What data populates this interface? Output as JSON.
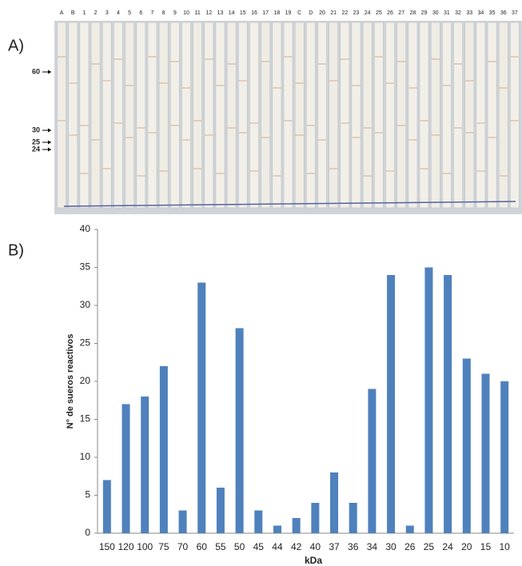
{
  "blot": {
    "panel_label": "A)",
    "lanes": [
      "A",
      "B",
      "1",
      "2",
      "3",
      "4",
      "5",
      "6",
      "7",
      "8",
      "9",
      "10",
      "11",
      "12",
      "13",
      "14",
      "15",
      "16",
      "17",
      "18",
      "19",
      "C",
      "D",
      "20",
      "21",
      "22",
      "23",
      "24",
      "25",
      "26",
      "27",
      "28",
      "29",
      "30",
      "31",
      "32",
      "33",
      "34",
      "35",
      "36",
      "37"
    ],
    "markers": [
      60,
      30,
      25,
      24
    ]
  },
  "chart_data": {
    "type": "bar",
    "panel_label": "B)",
    "x_label": "kDa",
    "y_label": "N° de sueros reactivos",
    "categories": [
      "150",
      "120",
      "100",
      "75",
      "70",
      "60",
      "55",
      "50",
      "45",
      "44",
      "42",
      "40",
      "37",
      "36",
      "34",
      "30",
      "26",
      "25",
      "24",
      "20",
      "15",
      "10"
    ],
    "values": [
      7,
      17,
      18,
      22,
      3,
      33,
      6,
      27,
      3,
      1,
      2,
      4,
      8,
      4,
      19,
      34,
      1,
      35,
      34,
      23,
      21,
      20
    ],
    "color": "#4f81bd",
    "ylim": [
      0,
      40
    ],
    "yticks": [
      0,
      5,
      10,
      15,
      20,
      25,
      30,
      35,
      40
    ],
    "grid": false
  }
}
